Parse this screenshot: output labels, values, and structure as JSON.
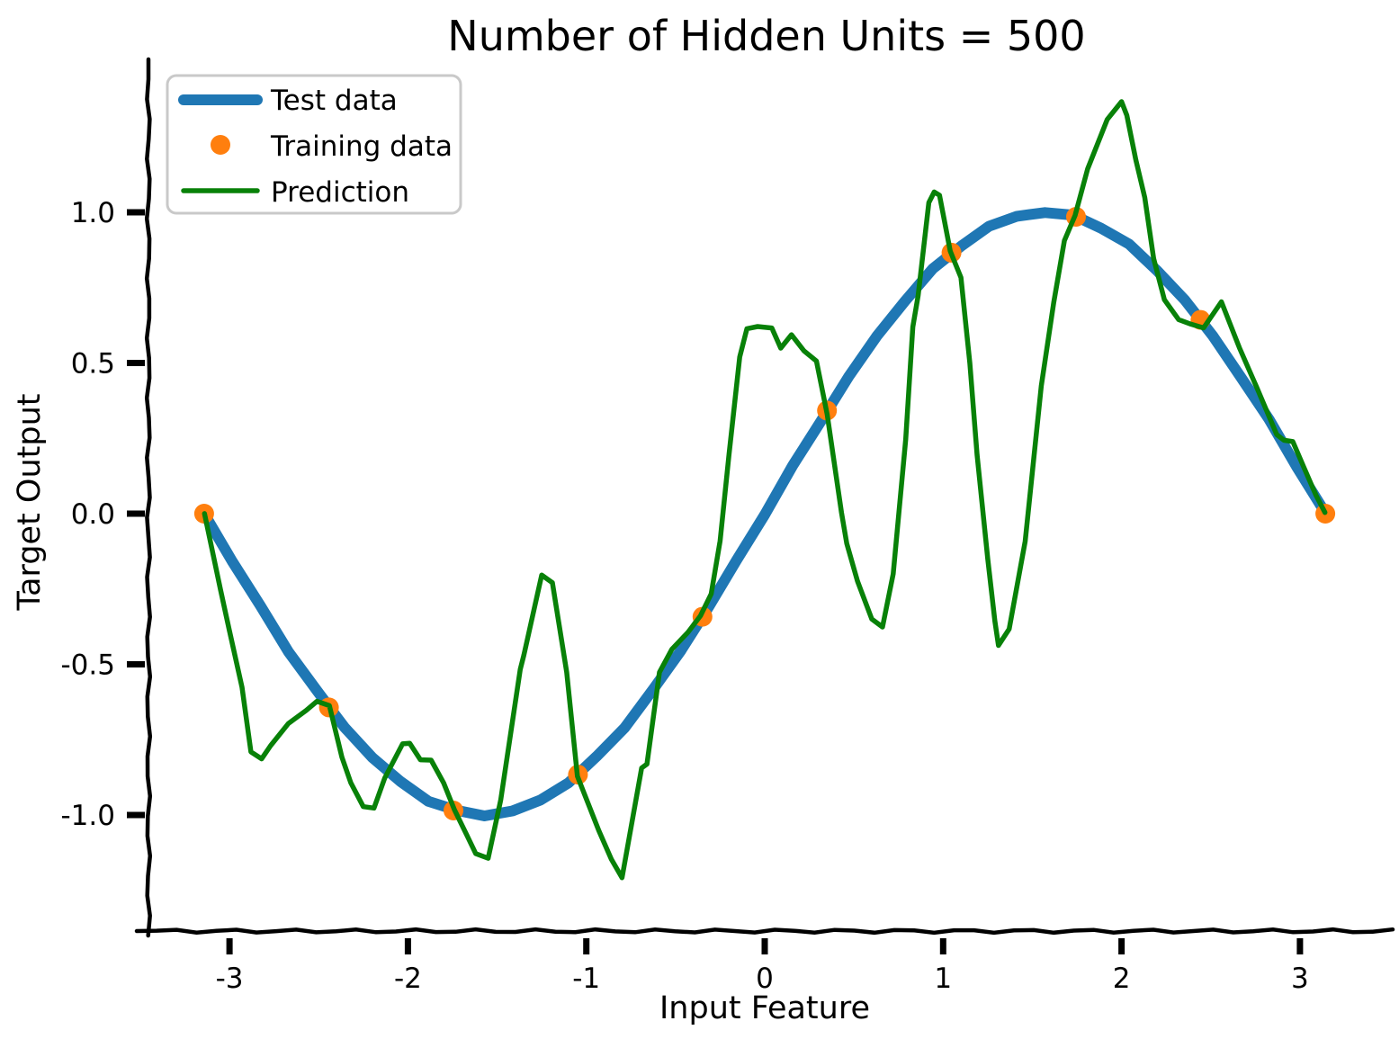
{
  "title": "Number of Hidden Units = 500",
  "axes": {
    "xlabel": "Input Feature",
    "ylabel": "Target Output",
    "x_tick_labels": [
      "-3",
      "-2",
      "-1",
      "0",
      "1",
      "2",
      "3"
    ],
    "y_tick_labels": [
      "1.0",
      "0.5",
      "0.0",
      "-0.5",
      "-1.0"
    ]
  },
  "legend": {
    "position": "upper left",
    "entries": [
      {
        "label": "Test data",
        "swatch": "thick-line",
        "color": "#1f77b4"
      },
      {
        "label": "Training data",
        "swatch": "dot",
        "color": "#ff7f0e"
      },
      {
        "label": "Prediction",
        "swatch": "line",
        "color": "#088108"
      }
    ]
  },
  "colors": {
    "test_data": "#1f77b4",
    "training_data": "#ff7f0e",
    "prediction": "#088108",
    "axis": "#000000",
    "legend_border": "#c9c9c9",
    "background": "#ffffff"
  },
  "chart_data": {
    "type": "line",
    "style": "xkcd",
    "title": "Number of Hidden Units = 500",
    "xlabel": "Input Feature",
    "ylabel": "Target Output",
    "xlim": [
      -3.55,
      3.55
    ],
    "ylim": [
      -1.42,
      1.52
    ],
    "grid": false,
    "x_ticks": [
      -3,
      -2,
      -1,
      0,
      1,
      2,
      3
    ],
    "x_tick_labels": [
      "-3",
      "-2",
      "-1",
      "0",
      "1",
      "2",
      "3"
    ],
    "y_ticks": [
      1.0,
      0.5,
      0.0,
      -0.5,
      -1.0
    ],
    "y_tick_labels": [
      "1.0",
      "0.5",
      "0.0",
      "-0.5",
      "-1.0"
    ],
    "legend_position": "upper left",
    "series": [
      {
        "name": "Test data",
        "type": "line",
        "color": "#1f77b4",
        "width": 12,
        "x": [
          -3.142,
          -2.985,
          -2.827,
          -2.67,
          -2.513,
          -2.356,
          -2.199,
          -2.042,
          -1.885,
          -1.728,
          -1.571,
          -1.414,
          -1.257,
          -1.1,
          -0.942,
          -0.785,
          -0.628,
          -0.471,
          -0.314,
          -0.157,
          0,
          0.157,
          0.314,
          0.471,
          0.628,
          0.785,
          0.942,
          1.1,
          1.257,
          1.414,
          1.571,
          1.728,
          1.885,
          2.042,
          2.199,
          2.356,
          2.513,
          2.67,
          2.827,
          2.985,
          3.142
        ],
        "y": [
          0,
          -0.156,
          -0.309,
          -0.454,
          -0.588,
          -0.707,
          -0.809,
          -0.891,
          -0.951,
          -0.988,
          -1,
          -0.988,
          -0.951,
          -0.891,
          -0.809,
          -0.707,
          -0.588,
          -0.454,
          -0.309,
          -0.156,
          0,
          0.156,
          0.309,
          0.454,
          0.588,
          0.707,
          0.809,
          0.891,
          0.951,
          0.988,
          1,
          0.988,
          0.951,
          0.891,
          0.809,
          0.707,
          0.588,
          0.454,
          0.309,
          0.156,
          0
        ]
      },
      {
        "name": "Training data",
        "type": "scatter",
        "color": "#ff7f0e",
        "marker_radius": 11,
        "x": [
          -3.142,
          -2.443,
          -1.745,
          -1.047,
          -0.349,
          0.349,
          1.047,
          1.745,
          2.443,
          3.142
        ],
        "y": [
          0,
          -0.643,
          -0.985,
          -0.866,
          -0.342,
          0.342,
          0.866,
          0.985,
          0.643,
          0
        ]
      },
      {
        "name": "Prediction",
        "type": "line",
        "color": "#088108",
        "width": 5.5,
        "x": [
          -3.14,
          -3.05,
          -3.0,
          -2.93,
          -2.88,
          -2.82,
          -2.77,
          -2.67,
          -2.57,
          -2.51,
          -2.44,
          -2.37,
          -2.32,
          -2.25,
          -2.19,
          -2.13,
          -2.03,
          -1.99,
          -1.93,
          -1.87,
          -1.8,
          -1.74,
          -1.67,
          -1.62,
          -1.55,
          -1.48,
          -1.37,
          -1.35,
          -1.25,
          -1.19,
          -1.11,
          -1.05,
          -0.93,
          -0.86,
          -0.8,
          -0.69,
          -0.66,
          -0.59,
          -0.52,
          -0.43,
          -0.36,
          -0.3,
          -0.25,
          -0.2,
          -0.14,
          -0.1,
          -0.04,
          0.04,
          0.09,
          0.15,
          0.22,
          0.29,
          0.35,
          0.43,
          0.46,
          0.52,
          0.6,
          0.66,
          0.72,
          0.79,
          0.83,
          0.86,
          0.92,
          0.95,
          0.98,
          1.04,
          1.1,
          1.15,
          1.19,
          1.25,
          1.29,
          1.31,
          1.37,
          1.46,
          1.55,
          1.62,
          1.68,
          1.74,
          1.81,
          1.92,
          2.0,
          2.03,
          2.08,
          2.13,
          2.18,
          2.24,
          2.32,
          2.39,
          2.46,
          2.56,
          2.66,
          2.76,
          2.87,
          2.91,
          2.96,
          3.02,
          3.09,
          3.14
        ],
        "y": [
          0,
          -0.25,
          -0.39,
          -0.58,
          -0.79,
          -0.81,
          -0.77,
          -0.7,
          -0.65,
          -0.62,
          -0.64,
          -0.81,
          -0.89,
          -0.97,
          -0.98,
          -0.88,
          -0.76,
          -0.76,
          -0.82,
          -0.82,
          -0.89,
          -0.98,
          -1.07,
          -1.13,
          -1.14,
          -0.95,
          -0.52,
          -0.47,
          -0.2,
          -0.23,
          -0.53,
          -0.87,
          -1.05,
          -1.15,
          -1.21,
          -0.84,
          -0.83,
          -0.53,
          -0.45,
          -0.39,
          -0.34,
          -0.27,
          -0.09,
          0.2,
          0.52,
          0.61,
          0.62,
          0.62,
          0.55,
          0.59,
          0.54,
          0.51,
          0.33,
          0,
          -0.1,
          -0.22,
          -0.35,
          -0.38,
          -0.2,
          0.25,
          0.62,
          0.72,
          1.03,
          1.07,
          1.06,
          0.87,
          0.78,
          0.5,
          0.2,
          -0.15,
          -0.36,
          -0.44,
          -0.38,
          -0.09,
          0.42,
          0.7,
          0.91,
          0.99,
          1.14,
          1.31,
          1.37,
          1.32,
          1.17,
          1.05,
          0.85,
          0.71,
          0.64,
          0.63,
          0.62,
          0.7,
          0.55,
          0.42,
          0.26,
          0.24,
          0.24,
          0.16,
          0.06,
          0
        ]
      }
    ]
  }
}
